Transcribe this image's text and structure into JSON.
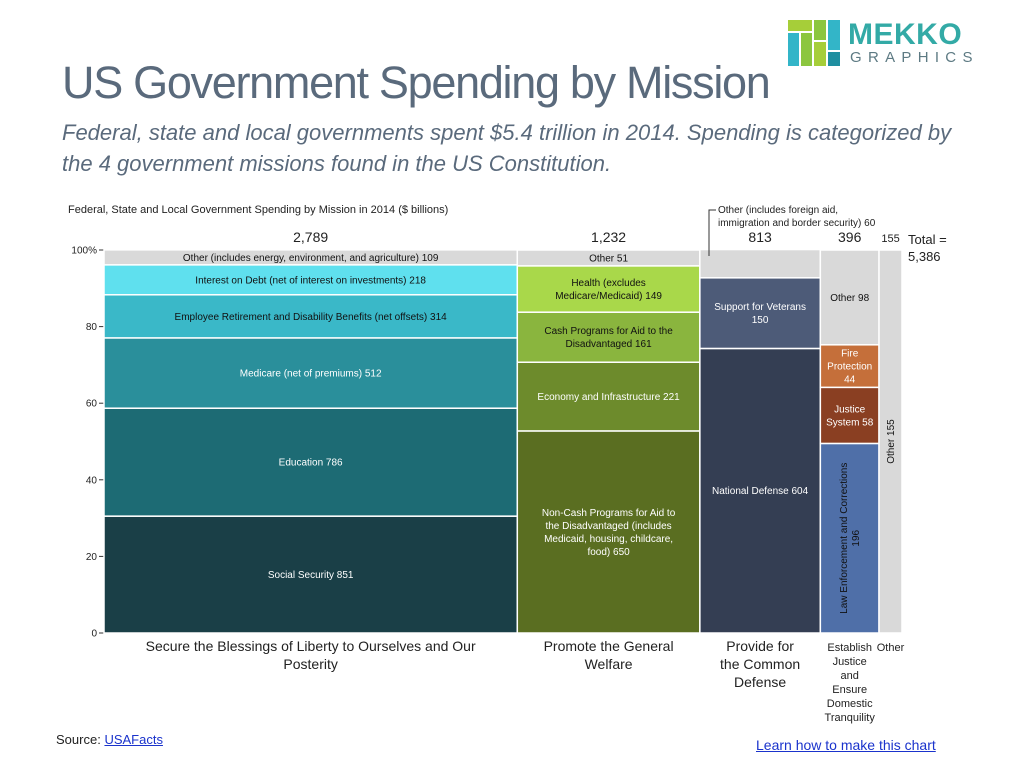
{
  "title": "US Government Spending by Mission",
  "subtitle": "Federal, state and local governments spent $5.4 trillion in 2014. Spending is categorized by the 4 government missions found in the US Constitution.",
  "logo": {
    "name": "mekko-graphics-logo",
    "word": "MEKKO",
    "sub": "GRAPHICS",
    "colors": [
      "#8cc63f",
      "#33b5c8",
      "#1f8fa0",
      "#a6ce39"
    ]
  },
  "source_label": "Source:",
  "source_link": "USAFacts",
  "learn_link": "Learn how to make this chart",
  "chart_data": {
    "type": "mekko",
    "title": "Federal, State and Local Government Spending by Mission in 2014 ($ billions)",
    "y_ticks": [
      "0",
      "20",
      "40",
      "60",
      "80",
      "100%"
    ],
    "ylim": [
      0,
      100
    ],
    "grand_total": "Total =\n5,386",
    "grand_total_value": 5386,
    "columns": [
      {
        "name": "Secure the Blessings of Liberty to Ourselves and Our Posterity",
        "total": 2789,
        "total_label": "2,789",
        "segments": [
          {
            "label": "Social Security 851",
            "value": 851,
            "color": "#1a3f47",
            "text_color": "#ffffff"
          },
          {
            "label": "Education 786",
            "value": 786,
            "color": "#1d6b74",
            "text_color": "#ffffff"
          },
          {
            "label": "Medicare (net of premiums) 512",
            "value": 512,
            "color": "#2a8f9b",
            "text_color": "#ffffff"
          },
          {
            "label": "Employee Retirement and Disability Benefits (net offsets) 314",
            "value": 314,
            "color": "#3ab8c8",
            "text_color": "#111111"
          },
          {
            "label": "Interest on Debt (net of interest on investments) 218",
            "value": 218,
            "color": "#5fe0ee",
            "text_color": "#111111"
          },
          {
            "label": "Other (includes energy, environment, and agriculture) 109",
            "value": 109,
            "color": "#d9d9d9",
            "text_color": "#111111"
          }
        ]
      },
      {
        "name": "Promote the General Welfare",
        "total": 1232,
        "total_label": "1,232",
        "segments": [
          {
            "label": "Non-Cash Programs for Aid to the Disadvantaged (includes Medicaid, housing, childcare, food) 650",
            "value": 650,
            "color": "#5a6e21",
            "text_color": "#ffffff"
          },
          {
            "label": "Economy and Infrastructure 221",
            "value": 221,
            "color": "#6d8b2c",
            "text_color": "#ffffff"
          },
          {
            "label": "Cash Programs for Aid to the Disadvantaged 161",
            "value": 161,
            "color": "#8ab53e",
            "text_color": "#111111"
          },
          {
            "label": "Health (excludes Medicare/Medicaid) 149",
            "value": 149,
            "color": "#a9d84a",
            "text_color": "#111111"
          },
          {
            "label": "Other 51",
            "value": 51,
            "color": "#d9d9d9",
            "text_color": "#111111"
          }
        ]
      },
      {
        "name": "Provide for the Common Defense",
        "total": 813,
        "total_label": "813",
        "segments": [
          {
            "label": "National Defense 604",
            "value": 604,
            "color": "#343e53",
            "text_color": "#ffffff"
          },
          {
            "label": "Support for Veterans 150",
            "value": 150,
            "color": "#4d5b78",
            "text_color": "#ffffff"
          },
          {
            "label": "",
            "value": 60,
            "color": "#d9d9d9",
            "text_color": "#111111"
          }
        ]
      },
      {
        "name": "Establish Justice and Ensure Domestic Tranquility",
        "total": 396,
        "total_label": "396",
        "segments": [
          {
            "label": "Law Enforcement and Corrections 196",
            "value": 196,
            "color": "#4f6fa8",
            "text_color": "#111111",
            "vertical": true
          },
          {
            "label": "Justice System 58",
            "value": 58,
            "color": "#8a3f22",
            "text_color": "#ffffff"
          },
          {
            "label": "Fire Protection 44",
            "value": 44,
            "color": "#c56f3a",
            "text_color": "#ffffff"
          },
          {
            "label": "Other 98",
            "value": 98,
            "color": "#d9d9d9",
            "text_color": "#111111"
          }
        ]
      },
      {
        "name": "Other",
        "total": 155,
        "total_label": "155",
        "segments": [
          {
            "label": "Other 155",
            "value": 155,
            "color": "#d9d9d9",
            "text_color": "#111111",
            "vertical": true
          }
        ]
      }
    ],
    "annotation": "Other (includes foreign aid, immigration and border security) 60"
  }
}
